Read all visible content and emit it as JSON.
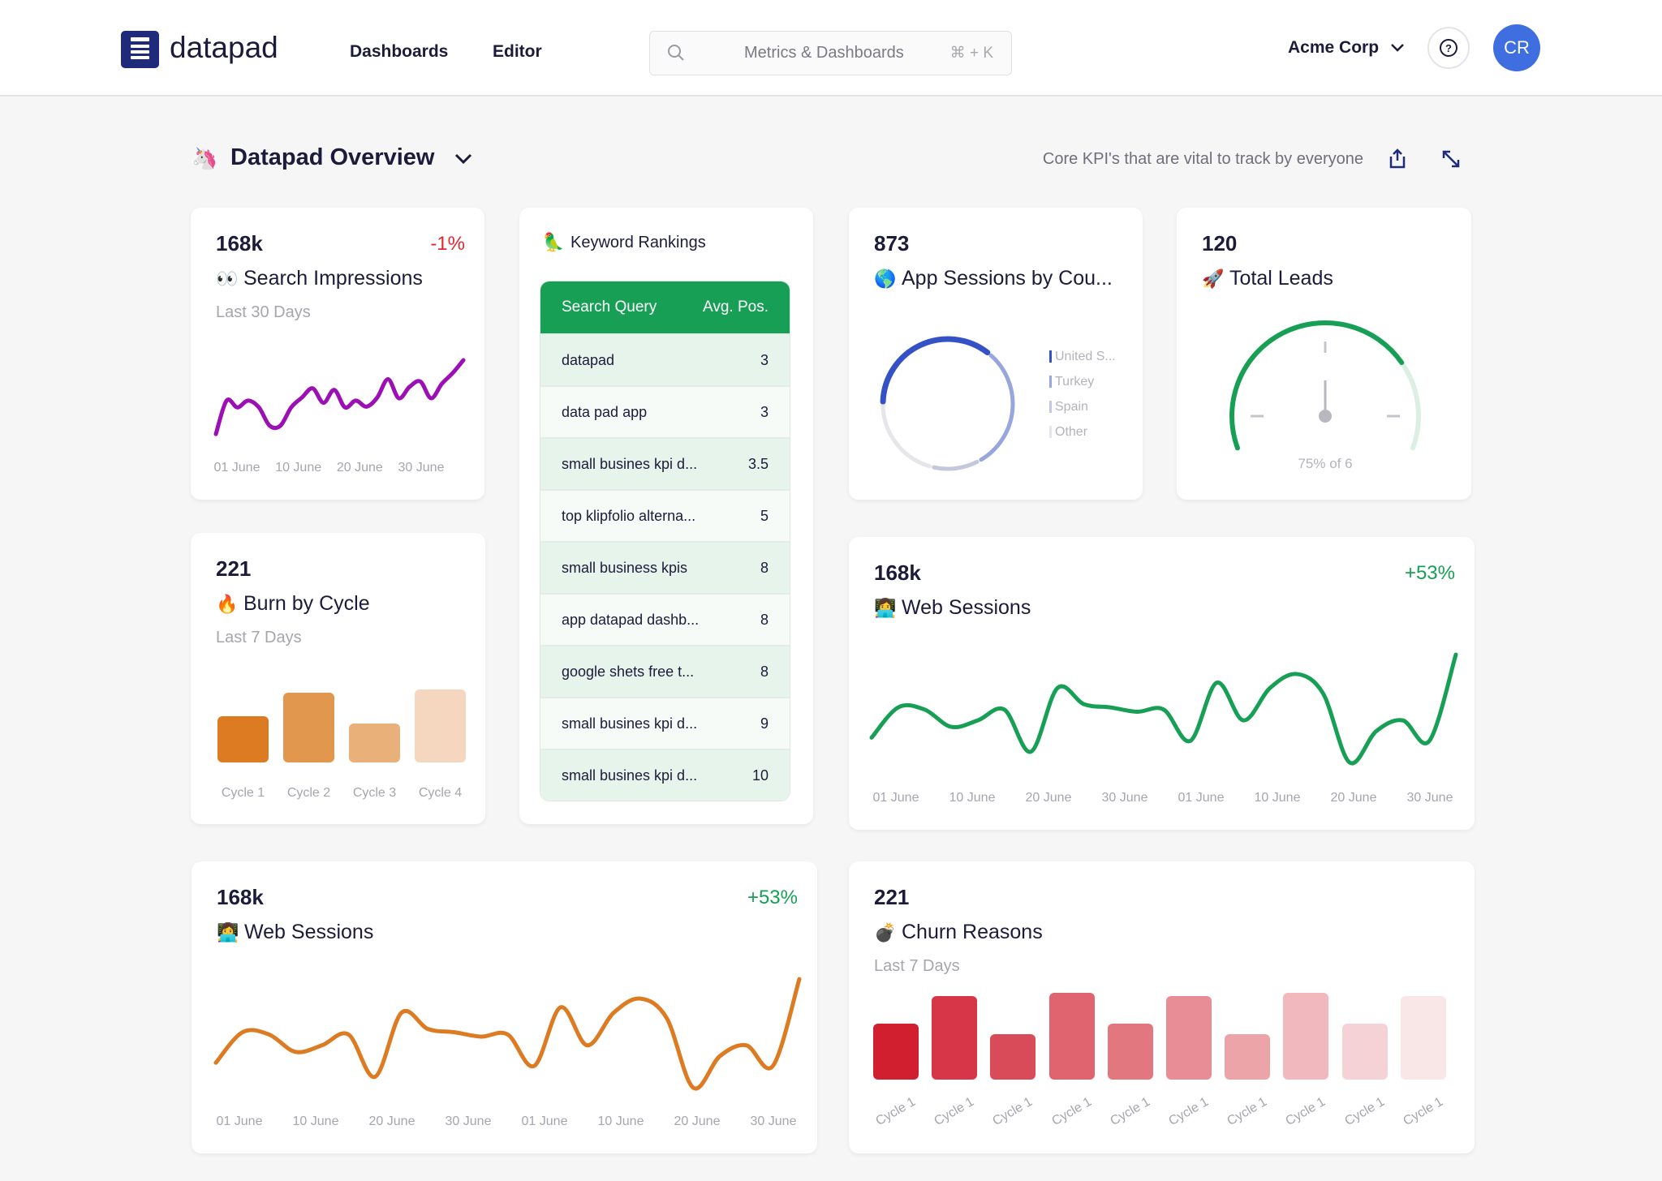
{
  "header": {
    "logo": "datapad",
    "nav": [
      "Dashboards",
      "Editor"
    ],
    "search_placeholder": "Metrics & Dashboards",
    "search_shortcut": "⌘ + K",
    "org": "Acme Corp",
    "avatar_initials": "CR"
  },
  "page": {
    "title": "Datapad Overview",
    "subtitle": "Core KPI's that are vital to track by everyone"
  },
  "colors": {
    "brand": "#1f2a7a",
    "green": "#17a055",
    "negative": "#e0262f",
    "purple": "#9b0fb5",
    "orange": "#dd7b23",
    "avatar": "#3f6ee0"
  },
  "search_impressions": {
    "value": "168k",
    "delta": "-1%",
    "title": "Search Impressions",
    "emoji": "👀",
    "period": "Last 30 Days",
    "chart_data": {
      "type": "line",
      "x_labels": [
        "01 June",
        "10 June",
        "20 June",
        "30 June"
      ],
      "values": [
        3,
        47,
        38,
        47,
        38,
        14,
        14,
        38,
        51,
        63,
        44,
        61,
        38,
        47,
        39,
        51,
        75,
        50,
        65,
        72,
        50,
        69,
        83,
        100
      ]
    }
  },
  "keywords": {
    "title": "Keyword Rankings",
    "emoji": "🦜",
    "columns": [
      "Search Query",
      "Avg. Pos."
    ],
    "rows": [
      [
        "datapad",
        "3"
      ],
      [
        "data pad app",
        "3"
      ],
      [
        "small busines kpi d...",
        "3.5"
      ],
      [
        "top klipfolio alterna...",
        "5"
      ],
      [
        "small business kpis",
        "8"
      ],
      [
        "app datapad dashb...",
        "8"
      ],
      [
        "google shets free t...",
        "8"
      ],
      [
        "small busines kpi d...",
        "9"
      ],
      [
        "small busines kpi d...",
        "10"
      ]
    ]
  },
  "app_sessions": {
    "value": "873",
    "title": "App Sessions by Cou...",
    "emoji": "🌎",
    "chart_data": {
      "type": "pie",
      "labels": [
        "United S...",
        "Turkey",
        "Spain",
        "Other"
      ],
      "values": [
        36,
        31,
        12,
        21
      ],
      "colors": [
        "#3451c6",
        "#97a6dc",
        "#c4c8dc",
        "#e6e6ea"
      ]
    }
  },
  "total_leads": {
    "value": "120",
    "title": "Total Leads",
    "emoji": "🚀",
    "gauge_label": "75% of 6",
    "fraction": 0.75
  },
  "burn": {
    "value": "221",
    "title": "Burn by Cycle",
    "emoji": "🔥",
    "period": "Last 7 Days",
    "chart_data": {
      "type": "bar",
      "categories": [
        "Cycle 1",
        "Cycle 2",
        "Cycle 3",
        "Cycle 4"
      ],
      "values": [
        44,
        66,
        37,
        69
      ],
      "colors": [
        "#dc7b22",
        "#e2974f",
        "#eab079",
        "#f5d6be"
      ]
    }
  },
  "web_sessions_1": {
    "value": "168k",
    "delta": "+53%",
    "title": "Web Sessions",
    "emoji": "👩‍💻",
    "chart_data": {
      "type": "line",
      "x_labels": [
        "01 June",
        "10 June",
        "20 June",
        "30 June",
        "01 June",
        "10 June",
        "20 June",
        "30 June"
      ],
      "values": [
        23,
        51,
        49,
        33,
        39,
        49,
        10,
        69,
        54,
        51,
        47,
        49,
        20,
        74,
        39,
        69,
        82,
        64,
        0,
        29,
        39,
        20,
        100
      ]
    }
  },
  "web_sessions_2": {
    "value": "168k",
    "delta": "+53%",
    "title": "Web Sessions",
    "emoji": "👩‍💻",
    "chart_data": {
      "type": "line",
      "x_labels": [
        "01 June",
        "10 June",
        "20 June",
        "30 June",
        "01 June",
        "10 June",
        "20 June",
        "30 June"
      ],
      "values": [
        23,
        51,
        49,
        33,
        39,
        49,
        10,
        69,
        54,
        51,
        47,
        49,
        20,
        74,
        39,
        69,
        82,
        64,
        0,
        29,
        39,
        20,
        100
      ]
    }
  },
  "churn": {
    "value": "221",
    "title": "Churn Reasons",
    "emoji": "💣",
    "period": "Last 7 Days",
    "chart_data": {
      "type": "bar",
      "categories": [
        "Cycle 1",
        "Cycle 1",
        "Cycle 1",
        "Cycle 1",
        "Cycle 1",
        "Cycle 1",
        "Cycle 1",
        "Cycle 1",
        "Cycle 1",
        "Cycle 1"
      ],
      "values": [
        53,
        79,
        43,
        82,
        53,
        79,
        43,
        82,
        53,
        79
      ],
      "colors": [
        "#d11f2f",
        "#d63647",
        "#da4b59",
        "#e0646f",
        "#e37780",
        "#e88d95",
        "#eda4a9",
        "#f1b9be",
        "#f5d2d5",
        "#f9e6e6"
      ]
    }
  }
}
